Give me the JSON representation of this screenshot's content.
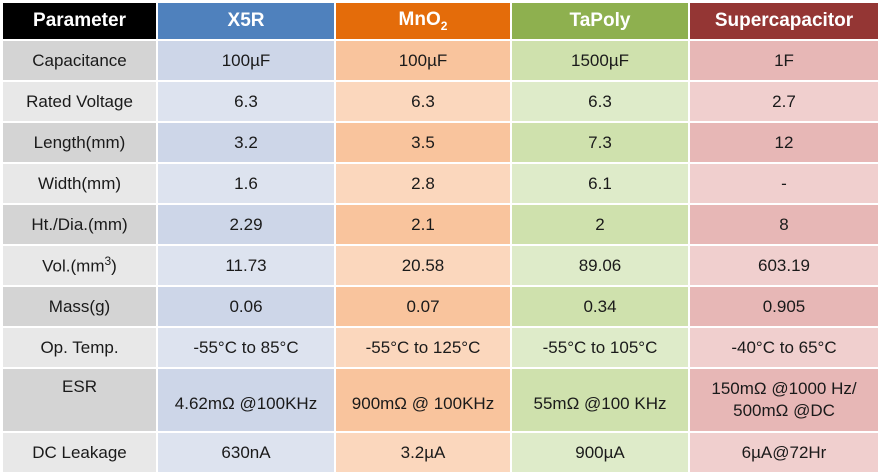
{
  "header": {
    "parameter": "Parameter",
    "col1": "X5R",
    "col2_base": "MnO",
    "col2_sub": "2",
    "col3": "TaPoly",
    "col4": "Supercapacitor"
  },
  "colors": {
    "header_parameter": "#000000",
    "header_x5r": "#4f81bd",
    "header_mno2": "#e46c0a",
    "header_tapoly": "#8eb04f",
    "header_supercapacitor": "#943634"
  },
  "rows": [
    {
      "label": "Capacitance",
      "values": [
        "100µF",
        "100µF",
        "1500µF",
        "1F"
      ]
    },
    {
      "label": "Rated Voltage",
      "values": [
        "6.3",
        "6.3",
        "6.3",
        "2.7"
      ]
    },
    {
      "label": "Length(mm)",
      "values": [
        "3.2",
        "3.5",
        "7.3",
        "12"
      ]
    },
    {
      "label": "Width(mm)",
      "values": [
        "1.6",
        "2.8",
        "6.1",
        "-"
      ]
    },
    {
      "label": "Ht./Dia.(mm)",
      "values": [
        "2.29",
        "2.1",
        "2",
        "8"
      ]
    },
    {
      "label_base": "Vol.(mm",
      "label_sup": "3",
      "label_end": ")",
      "values": [
        "11.73",
        "20.58",
        "89.06",
        "603.19"
      ]
    },
    {
      "label": "Mass(g)",
      "values": [
        "0.06",
        "0.07",
        "0.34",
        "0.905"
      ]
    },
    {
      "label": "Op. Temp.",
      "values": [
        "-55°C to 85°C",
        "-55°C to 125°C",
        "-55°C to 105°C",
        "-40°C to 65°C"
      ]
    },
    {
      "label": "ESR",
      "values": [
        "4.62mΩ @100KHz",
        "900mΩ @ 100KHz",
        "55mΩ @100 KHz"
      ],
      "value4_line1": "150mΩ @1000 Hz/",
      "value4_line2": "500mΩ @DC"
    },
    {
      "label": "DC Leakage",
      "values": [
        "630nA",
        "3.2µA",
        "900µA",
        "6µA@72Hr"
      ]
    }
  ]
}
